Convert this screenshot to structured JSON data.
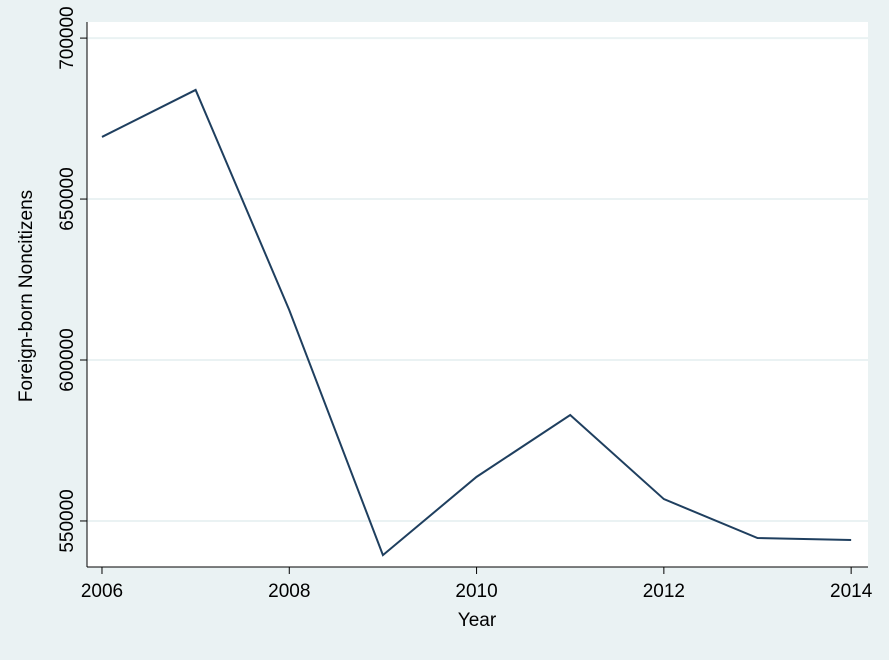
{
  "chart_data": {
    "type": "line",
    "x_label": "Year",
    "y_label": "Foreign-born Noncitizens",
    "x": [
      2006,
      2007,
      2008,
      2009,
      2010,
      2011,
      2012,
      2013,
      2014
    ],
    "series": [
      {
        "name": "Foreign-born Noncitizens",
        "color": "#1f3f5f",
        "values": [
          669300,
          683900,
          615500,
          539400,
          563700,
          582900,
          556800,
          544700,
          544100
        ]
      }
    ],
    "xlim": [
      2005.84,
      2014.18
    ],
    "xticks": [
      2006,
      2008,
      2010,
      2012,
      2014
    ],
    "ylim": [
      535700,
      705000
    ],
    "yticks": [
      550000,
      600000,
      650000,
      700000
    ],
    "grid": true
  }
}
